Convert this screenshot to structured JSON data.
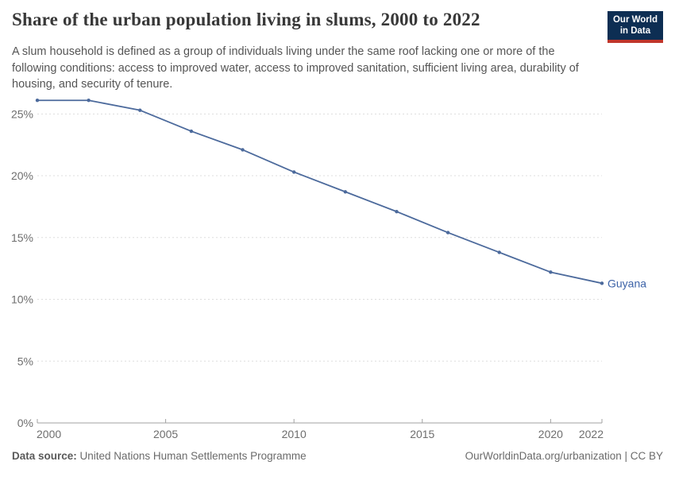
{
  "header": {
    "title": "Share of the urban population living in slums, 2000 to 2022",
    "subtitle": "A slum household is defined as a group of individuals living under the same roof lacking one or more of the following conditions: access to improved water, access to improved sanitation, sufficient living area, durability of housing, and security of tenure.",
    "logo": {
      "line1": "Our World",
      "line2": "in Data",
      "bg_color": "#0d2e53",
      "accent_color": "#c0362c"
    }
  },
  "chart_data": {
    "type": "line",
    "title": "Share of the urban population living in slums, 2000 to 2022",
    "xlabel": "",
    "ylabel": "",
    "x": [
      2000,
      2002,
      2004,
      2006,
      2008,
      2010,
      2012,
      2014,
      2016,
      2018,
      2020,
      2022
    ],
    "series": [
      {
        "name": "Guyana",
        "color": "#4C6A9C",
        "values": [
          26.1,
          26.1,
          25.3,
          23.6,
          22.1,
          20.3,
          18.7,
          17.1,
          15.4,
          13.8,
          12.2,
          11.3
        ]
      }
    ],
    "xlim": [
      2000,
      2022
    ],
    "ylim": [
      0,
      26.5
    ],
    "x_ticks": [
      2000,
      2005,
      2010,
      2015,
      2020,
      2022
    ],
    "y_ticks": [
      0,
      5,
      10,
      15,
      20,
      25
    ],
    "y_tick_suffix": "%",
    "grid": "horizontal-dashed",
    "grid_color": "#dddddd",
    "axis_color": "#a1a1a1",
    "tick_label_color": "#6e6e6e",
    "end_label": "Guyana",
    "end_label_color": "#3d63a8",
    "legend_position": "line-end"
  },
  "footer": {
    "source_label": "Data source:",
    "source_value": " United Nations Human Settlements Programme",
    "attribution": "OurWorldinData.org/urbanization | CC BY"
  }
}
